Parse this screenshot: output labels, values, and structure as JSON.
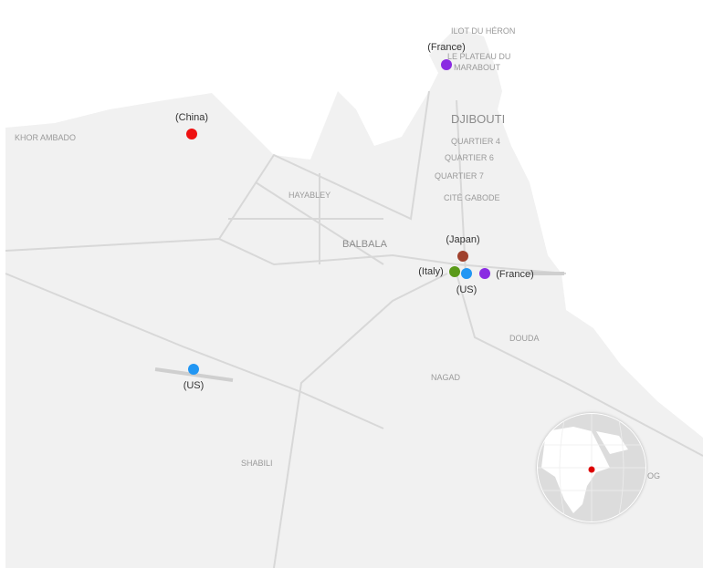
{
  "places": {
    "ilot_du_heron": "ILOT DU HÉRON",
    "le_plateau": "LE PLATEAU DU",
    "marabout": "MARABOUT",
    "djibouti": "DJIBOUTI",
    "quartier4": "QUARTIER 4",
    "quartier6": "QUARTIER 6",
    "quartier7": "QUARTIER 7",
    "cite_gabode": "CITÉ GABODE",
    "khor_ambado": "KHOR AMBADO",
    "hayabley": "HAYABLEY",
    "balbala": "BALBALA",
    "douda": "DOUDA",
    "nagad": "NAGAD",
    "shabili": "SHABILI",
    "og": "OG"
  },
  "markers": [
    {
      "label": "(France)",
      "color": "#8a2be2"
    },
    {
      "label": "(China)",
      "color": "#ee1111"
    },
    {
      "label": "(Japan)",
      "color": "#a0412d"
    },
    {
      "label": "(Italy)",
      "color": "#5a9a1a"
    },
    {
      "label": "(US)",
      "color": "#2196f3"
    },
    {
      "label": "(France)",
      "color": "#8a2be2"
    },
    {
      "label": "(US)",
      "color": "#2196f3"
    }
  ],
  "globe": {
    "marker_color": "#dd0000"
  },
  "colors": {
    "land": "#f1f1f1",
    "sea": "#ffffff",
    "roads": "#d8d8d8"
  }
}
